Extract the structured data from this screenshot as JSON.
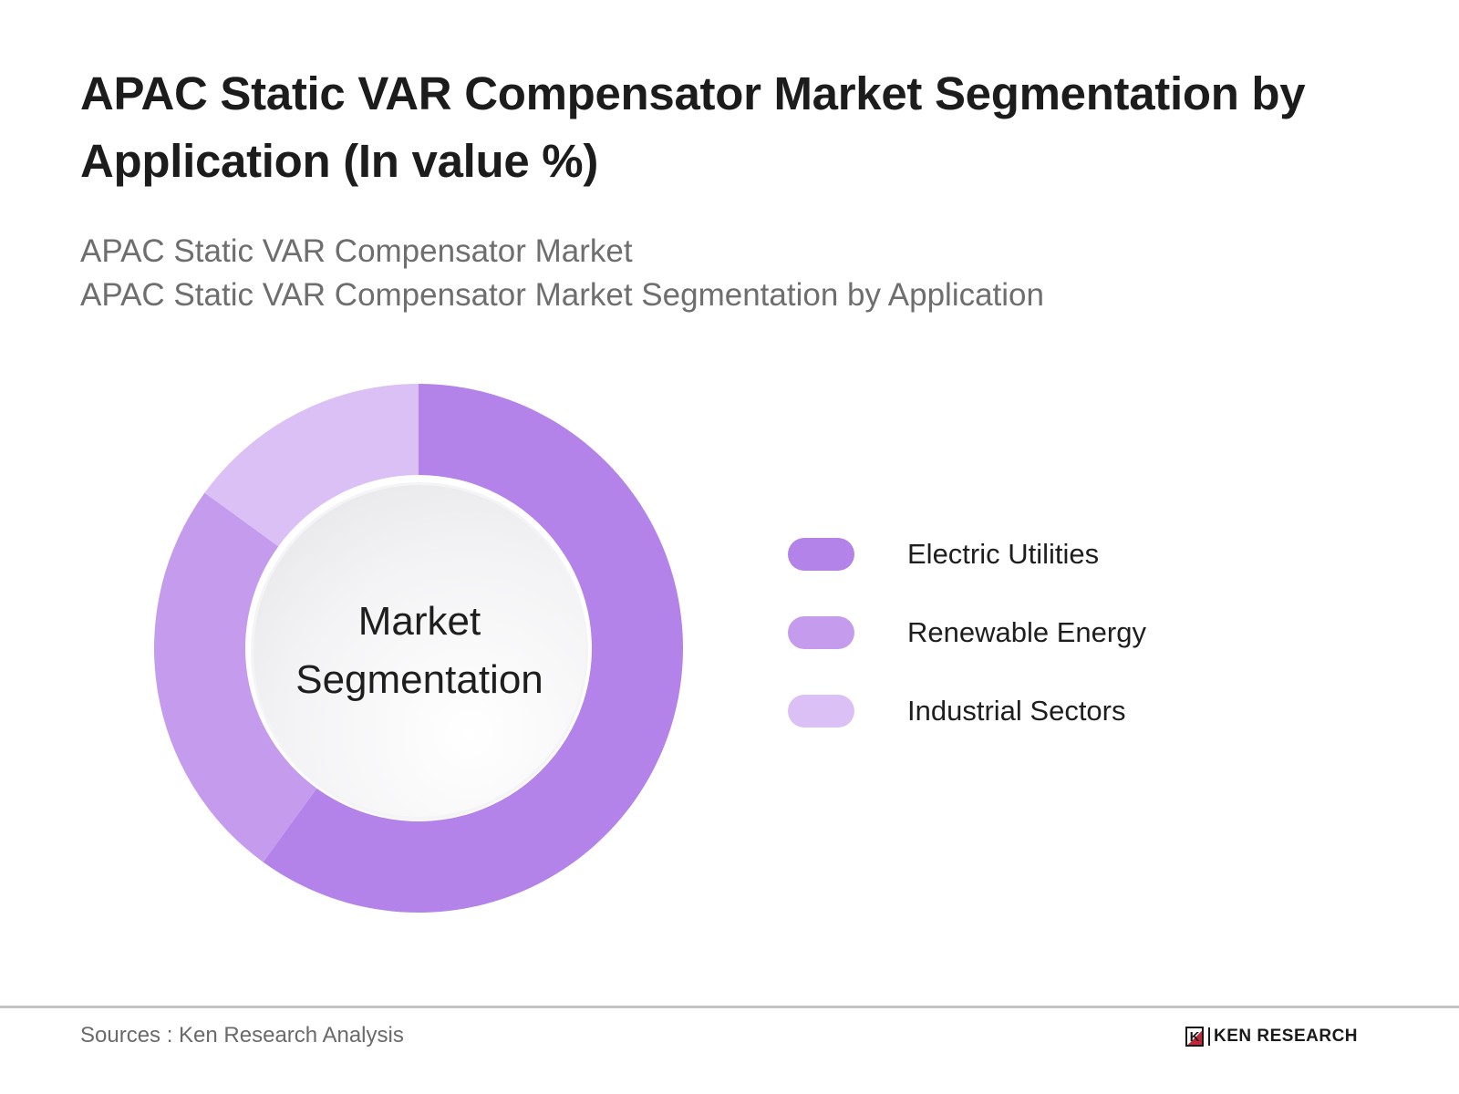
{
  "header": {
    "title": "APAC Static VAR Compensator Market Segmentation by Application (In value %)",
    "subtitle_line1": "APAC Static VAR Compensator Market",
    "subtitle_line2": "APAC Static VAR Compensator Market Segmentation by Application"
  },
  "donut": {
    "center_line1": "Market",
    "center_line2": "Segmentation"
  },
  "legend": {
    "items": [
      {
        "label": "Electric Utilities",
        "color": "#b383e9"
      },
      {
        "label": "Renewable Energy",
        "color": "#c59bee"
      },
      {
        "label": "Industrial Sectors",
        "color": "#dbc0f6"
      }
    ]
  },
  "footer": {
    "sources": "Sources : Ken Research Analysis",
    "logo_mark": "K",
    "logo_text": "KEN RESEARCH"
  },
  "chart_data": {
    "type": "pie",
    "variant": "donut",
    "title": "APAC Static VAR Compensator Market Segmentation by Application (In value %)",
    "subtitle": "APAC Static VAR Compensator Market Segmentation by Application",
    "center_label": "Market Segmentation",
    "categories": [
      "Electric Utilities",
      "Renewable Energy",
      "Industrial Sectors"
    ],
    "values": [
      60,
      25,
      15
    ],
    "unit": "%",
    "values_estimated": true,
    "colors": [
      "#b383e9",
      "#c59bee",
      "#dbc0f6"
    ],
    "start_angle_deg": 0,
    "direction": "clockwise",
    "legend_position": "right",
    "source": "Sources : Ken Research Analysis"
  }
}
